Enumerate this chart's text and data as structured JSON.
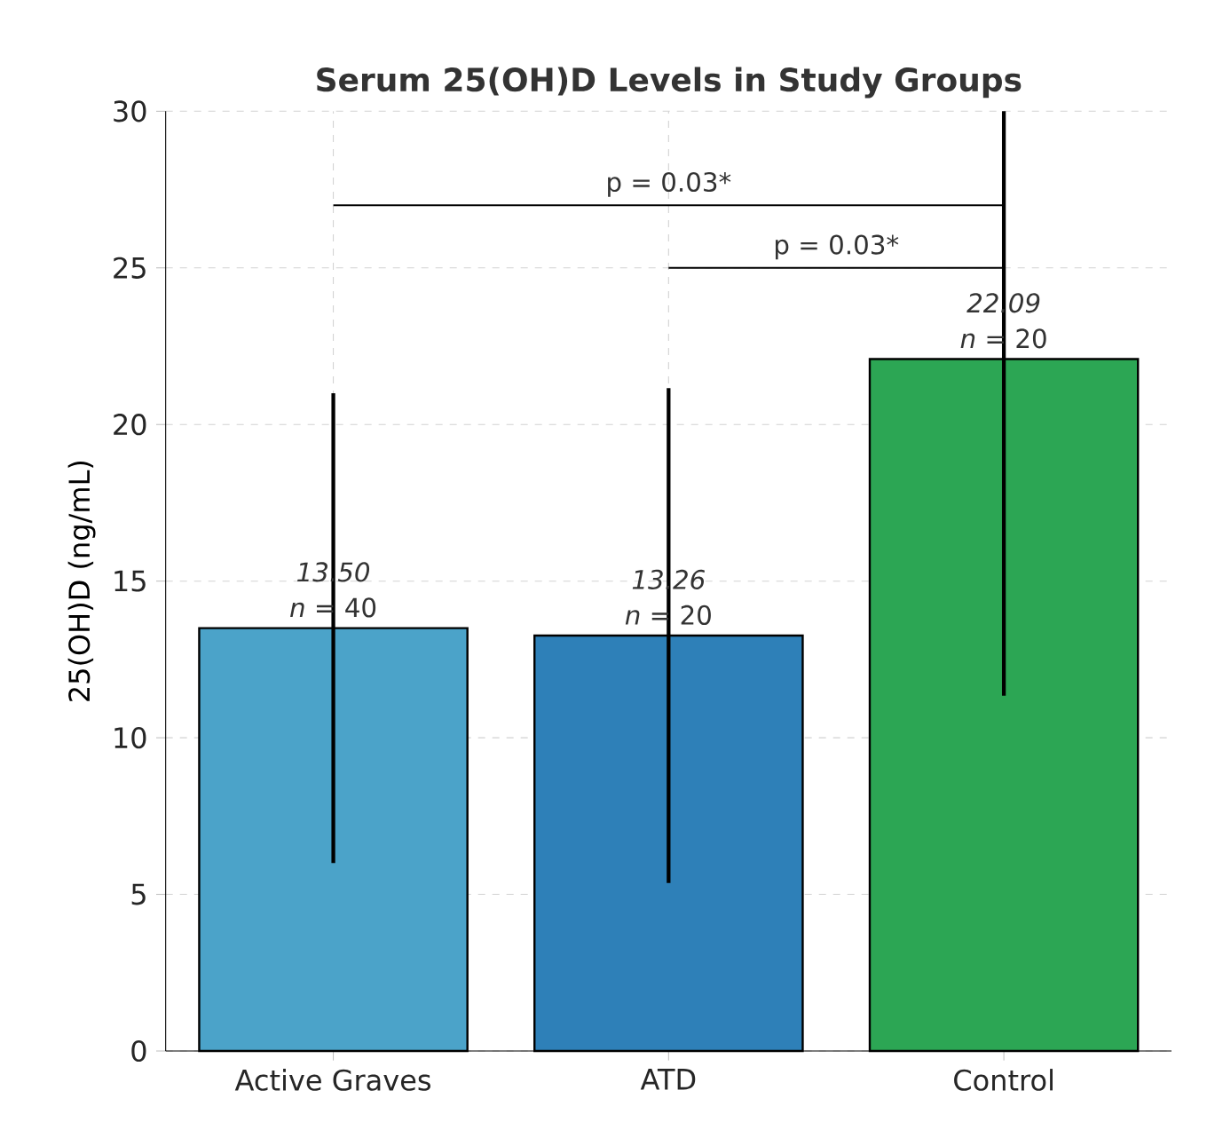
{
  "chart_data": {
    "type": "bar",
    "title": "Serum 25(OH)D Levels in Study Groups",
    "ylabel": "25(OH)D (ng/mL)",
    "categories": [
      "Active Graves",
      "ATD",
      "Control"
    ],
    "values": [
      13.5,
      13.26,
      22.09
    ],
    "colors": [
      "#4ba3c9",
      "#2e80b8",
      "#2ca654"
    ],
    "errors": [
      [
        6.0,
        21.0
      ],
      [
        5.36,
        21.16
      ],
      [
        11.34,
        30
      ]
    ],
    "value_labels": [
      "13.50",
      "13.26",
      "22.09"
    ],
    "annotations": [
      {
        "text": "*n* = 40",
        "x": "Active Graves",
        "y": 13.5
      },
      {
        "text": "*n* = 20",
        "x": "ATD",
        "y": 13.26
      },
      {
        "text": "*n* = 20",
        "x": "Control",
        "y": 22.09
      },
      "p = 0.03*",
      "p = 0.03*"
    ],
    "ylim": [
      0,
      30
    ],
    "yticks": [
      0,
      5,
      10,
      15,
      20,
      25,
      30
    ],
    "grid": true
  }
}
